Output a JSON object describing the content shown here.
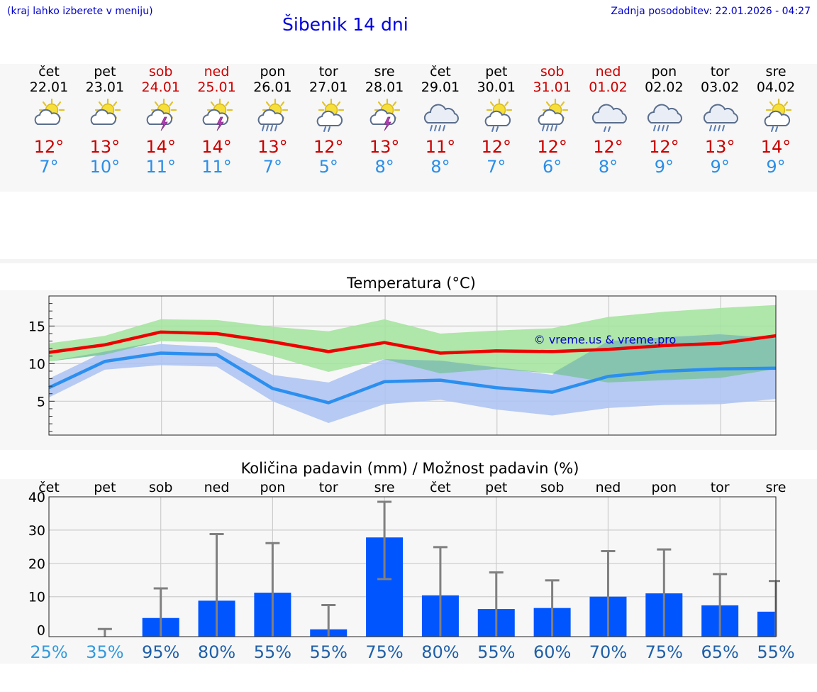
{
  "header": {
    "hint": "(kraj lahko izberete v meniju)",
    "title": "Šibenik 14 dni",
    "updated": "Zadnja posodobitev: 22.01.2026 - 04:27"
  },
  "days": [
    {
      "name": "čet",
      "date": "22.01",
      "weekend": false,
      "icon": "partly-cloudy-icon",
      "tmax": "12°",
      "tmin": "7°"
    },
    {
      "name": "pet",
      "date": "23.01",
      "weekend": false,
      "icon": "partly-cloudy-icon",
      "tmax": "13°",
      "tmin": "10°"
    },
    {
      "name": "sob",
      "date": "24.01",
      "weekend": true,
      "icon": "sun-cloud-thunder-icon",
      "tmax": "14°",
      "tmin": "11°"
    },
    {
      "name": "ned",
      "date": "25.01",
      "weekend": true,
      "icon": "sun-cloud-thunder-icon",
      "tmax": "14°",
      "tmin": "11°"
    },
    {
      "name": "pon",
      "date": "26.01",
      "weekend": false,
      "icon": "sun-cloud-heavy-rain-icon",
      "tmax": "13°",
      "tmin": "7°"
    },
    {
      "name": "tor",
      "date": "27.01",
      "weekend": false,
      "icon": "sun-cloud-rain-icon",
      "tmax": "12°",
      "tmin": "5°"
    },
    {
      "name": "sre",
      "date": "28.01",
      "weekend": false,
      "icon": "sun-cloud-thunder-icon",
      "tmax": "13°",
      "tmin": "8°"
    },
    {
      "name": "čet",
      "date": "29.01",
      "weekend": false,
      "icon": "cloud-heavy-rain-icon",
      "tmax": "11°",
      "tmin": "8°"
    },
    {
      "name": "pet",
      "date": "30.01",
      "weekend": false,
      "icon": "sun-cloud-rain-icon",
      "tmax": "12°",
      "tmin": "7°"
    },
    {
      "name": "sob",
      "date": "31.01",
      "weekend": true,
      "icon": "sun-cloud-heavy-rain-icon",
      "tmax": "12°",
      "tmin": "6°"
    },
    {
      "name": "ned",
      "date": "01.02",
      "weekend": true,
      "icon": "cloud-rain-icon",
      "tmax": "12°",
      "tmin": "8°"
    },
    {
      "name": "pon",
      "date": "02.02",
      "weekend": false,
      "icon": "cloud-heavy-rain-icon",
      "tmax": "12°",
      "tmin": "9°"
    },
    {
      "name": "tor",
      "date": "03.02",
      "weekend": false,
      "icon": "cloud-heavy-rain-icon",
      "tmax": "13°",
      "tmin": "9°"
    },
    {
      "name": "sre",
      "date": "04.02",
      "weekend": false,
      "icon": "sun-cloud-rain-icon",
      "tmax": "14°",
      "tmin": "9°"
    }
  ],
  "colors": {
    "weekend": "#cc0000",
    "tmax_line": "#ee0000",
    "tmin_line": "#2b8fef",
    "tmax_band": "#a6e3a0",
    "tmin_band": "#aec4f2",
    "overlap_band": "#7fc3a6",
    "bar": "#0055ff",
    "errorbar": "#808080",
    "watermark": "#0000cc",
    "pct_light": "#3399dd",
    "pct_dark": "#1f5fa8"
  },
  "chart_data": [
    {
      "type": "line",
      "title": "Temperatura (°C)",
      "watermark": "© vreme.us & vreme.pro",
      "x": [
        0,
        1,
        2,
        3,
        4,
        5,
        6,
        7,
        8,
        9,
        10,
        11,
        12,
        13
      ],
      "ylim": [
        0.5,
        19
      ],
      "yticks": [
        5,
        10,
        15
      ],
      "grid": true,
      "series": [
        {
          "name": "tmax",
          "values": [
            11.5,
            12.5,
            14.2,
            14.0,
            12.9,
            11.6,
            12.8,
            11.4,
            11.7,
            11.6,
            11.9,
            12.4,
            12.7,
            13.7
          ]
        },
        {
          "name": "tmax_band_hi",
          "values": [
            12.7,
            13.7,
            15.9,
            15.8,
            14.9,
            14.3,
            15.9,
            14.0,
            14.4,
            14.7,
            16.2,
            16.9,
            17.4,
            17.8
          ]
        },
        {
          "name": "tmax_band_lo",
          "values": [
            10.3,
            11.2,
            13.0,
            12.8,
            11.0,
            8.9,
            10.6,
            8.7,
            9.3,
            8.7,
            7.5,
            7.8,
            8.1,
            9.3
          ]
        },
        {
          "name": "tmin",
          "values": [
            6.8,
            10.3,
            11.4,
            11.2,
            6.7,
            4.8,
            7.6,
            7.8,
            6.8,
            6.2,
            8.3,
            9.0,
            9.3,
            9.4
          ]
        },
        {
          "name": "tmin_band_hi",
          "values": [
            8.0,
            11.6,
            12.6,
            12.2,
            8.5,
            7.5,
            10.6,
            10.4,
            9.5,
            8.5,
            13.0,
            13.5,
            13.9,
            13.4
          ]
        },
        {
          "name": "tmin_band_lo",
          "values": [
            5.5,
            9.2,
            9.8,
            9.6,
            5.0,
            2.1,
            4.6,
            5.2,
            3.9,
            3.1,
            4.1,
            4.5,
            4.6,
            5.3
          ]
        }
      ]
    },
    {
      "type": "bar",
      "title": "Količina padavin (mm) / Možnost padavin (%)",
      "categories": [
        "čet",
        "pet",
        "sob",
        "ned",
        "pon",
        "tor",
        "sre",
        "čet",
        "pet",
        "sob",
        "ned",
        "pon",
        "tor",
        "sre"
      ],
      "ytick_labels": [
        "0",
        "10",
        "20",
        "30",
        "40"
      ],
      "ylim": [
        -2,
        40
      ],
      "amount_mm": [
        0,
        0,
        3.6,
        8.8,
        11.2,
        0.2,
        27.8,
        10.4,
        6.3,
        6.6,
        10.0,
        11.0,
        7.4,
        5.5
      ],
      "error_high": [
        0,
        0.3,
        12.5,
        28.8,
        26.1,
        7.5,
        38.5,
        24.9,
        17.3,
        14.9,
        23.7,
        24.2,
        16.8,
        14.7
      ],
      "error_low": [
        0,
        0,
        0,
        0,
        0,
        0,
        15.3,
        0,
        0,
        0,
        0,
        0,
        0,
        0
      ],
      "chance": [
        "25%",
        "35%",
        "95%",
        "80%",
        "55%",
        "55%",
        "75%",
        "80%",
        "55%",
        "60%",
        "70%",
        "75%",
        "65%",
        "55%"
      ]
    }
  ]
}
